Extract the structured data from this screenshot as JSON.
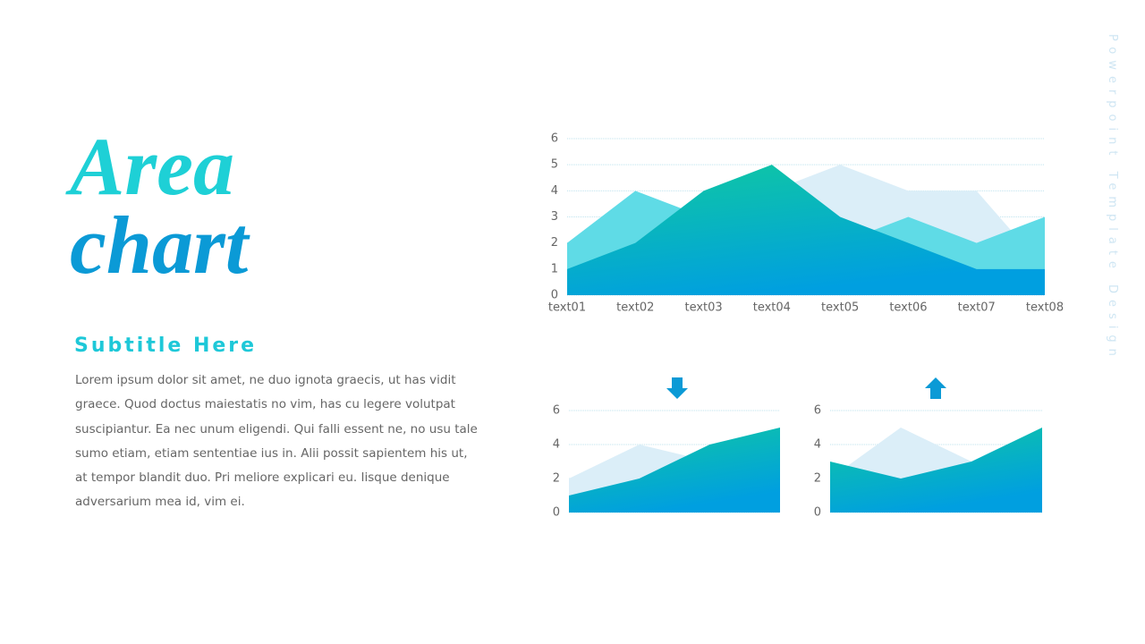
{
  "title_line1": "Area",
  "title_line2": "chart",
  "subtitle": "Subtitle Here",
  "body": "Lorem ipsum dolor sit amet, ne duo ignota graecis, ut has vidit graece. Quod doctus maiestatis no vim, has cu legere volutpat suscipiantur.  Ea nec unum eligendi. Qui falli essent ne, no usu tale sumo etiam, etiam sententiae ius in. Alii possit sapientem his ut, at tempor blandit duo. Pri meliore explicari eu. Iisque denique adversarium mea id, vim ei.",
  "side_text": "Powerpoint Template Design",
  "chart_data": [
    {
      "type": "area",
      "categories": [
        "text01",
        "text02",
        "text03",
        "text04",
        "text05",
        "text06",
        "text07",
        "text08"
      ],
      "ylim": [
        0,
        6
      ],
      "yticks": [
        0,
        1,
        2,
        3,
        4,
        5,
        6
      ],
      "grid": true,
      "series": [
        {
          "color": "#dbeef8",
          "values": [
            2,
            3,
            3,
            4,
            5,
            4,
            4,
            1
          ]
        },
        {
          "color": "#5fdbe6",
          "values": [
            2,
            4,
            3,
            2,
            2,
            3,
            2,
            3
          ]
        },
        {
          "color": "#10c9a0",
          "values": [
            1,
            2,
            4,
            5,
            3,
            2,
            1,
            1
          ]
        }
      ]
    },
    {
      "type": "area",
      "ylim": [
        0,
        6
      ],
      "yticks": [
        0,
        2,
        4,
        6
      ],
      "grid": true,
      "series": [
        {
          "color": "#dbeef8",
          "values": [
            2,
            4,
            3,
            4
          ]
        },
        {
          "color": "#10c9a0",
          "values": [
            1,
            2,
            4,
            5
          ]
        }
      ]
    },
    {
      "type": "area",
      "ylim": [
        0,
        6
      ],
      "yticks": [
        0,
        2,
        4,
        6
      ],
      "grid": true,
      "series": [
        {
          "color": "#dbeef8",
          "values": [
            2,
            5,
            3,
            4
          ]
        },
        {
          "color": "#10c9a0",
          "values": [
            3,
            2,
            3,
            5
          ]
        }
      ]
    }
  ]
}
